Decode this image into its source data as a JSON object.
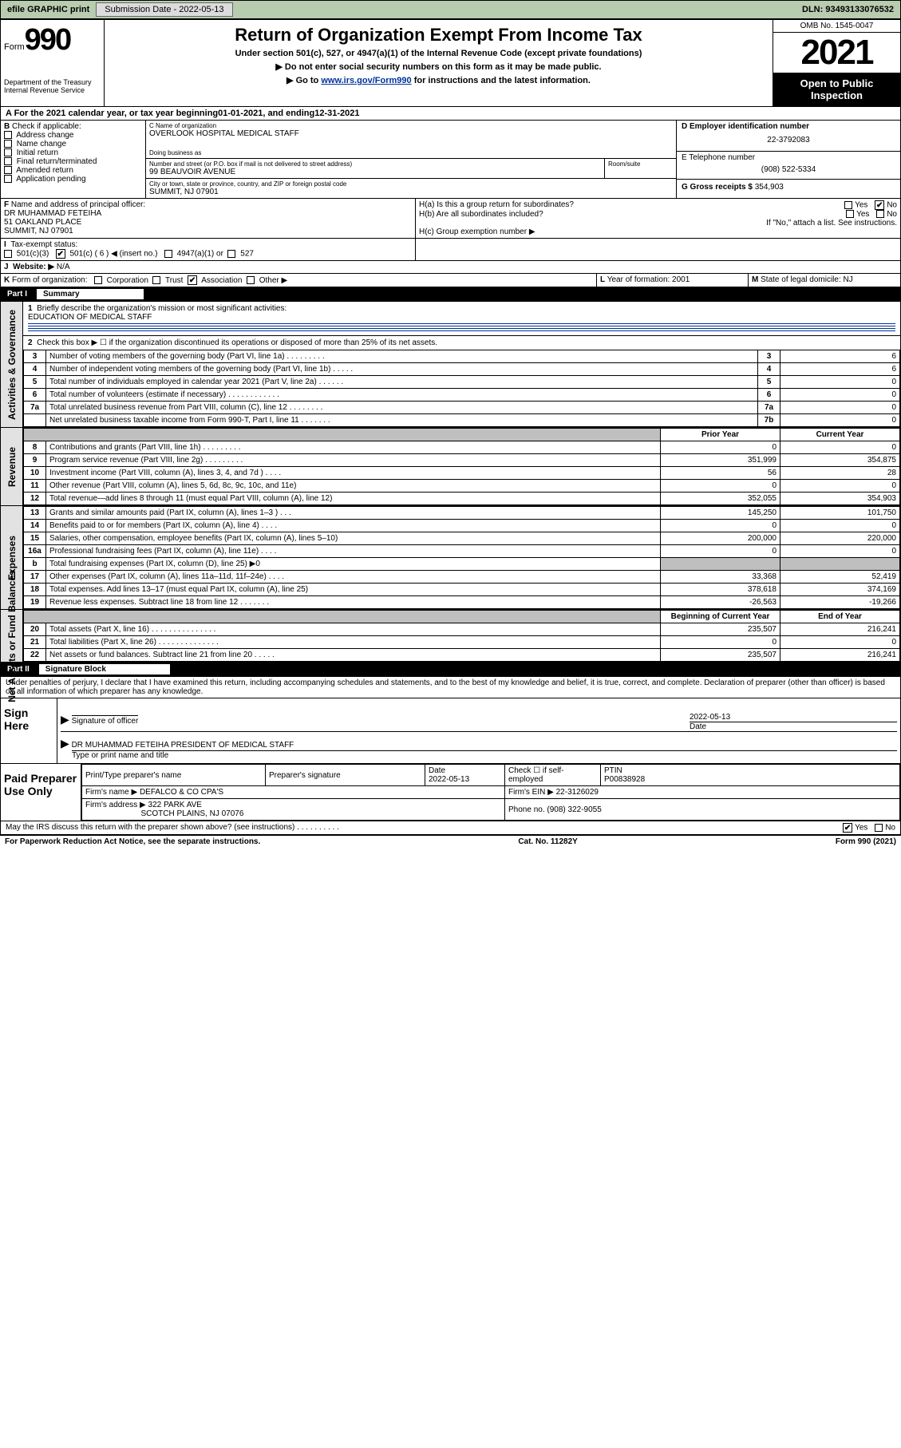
{
  "topbar": {
    "efile": "efile GRAPHIC print",
    "submission_label": "Submission Date - 2022-05-13",
    "dln_label": "DLN: 93493133076532"
  },
  "header": {
    "form_prefix": "Form",
    "form_number": "990",
    "dept": "Department of the Treasury",
    "irs": "Internal Revenue Service",
    "title": "Return of Organization Exempt From Income Tax",
    "sub": "Under section 501(c), 527, or 4947(a)(1) of the Internal Revenue Code (except private foundations)",
    "hint1": "▶ Do not enter social security numbers on this form as it may be made public.",
    "hint2_prefix": "▶ Go to ",
    "hint2_link": "www.irs.gov/Form990",
    "hint2_suffix": " for instructions and the latest information.",
    "omb": "OMB No. 1545-0047",
    "year": "2021",
    "inspect": "Open to Public Inspection"
  },
  "period": {
    "text_prefix": "A For the 2021 calendar year, or tax year beginning ",
    "begin": "01-01-2021",
    "mid": " , and ending ",
    "end": "12-31-2021"
  },
  "section_b": {
    "label": "B",
    "check_label": "Check if applicable:",
    "opts": [
      "Address change",
      "Name change",
      "Initial return",
      "Final return/terminated",
      "Amended return",
      "Application pending"
    ]
  },
  "section_c": {
    "label": "C Name of organization",
    "org": "OVERLOOK HOSPITAL MEDICAL STAFF",
    "dba_label": "Doing business as",
    "dba": "",
    "addr_label": "Number and street (or P.O. box if mail is not delivered to street address)",
    "room_label": "Room/suite",
    "addr": "99 BEAUVOIR AVENUE",
    "city_label": "City or town, state or province, country, and ZIP or foreign postal code",
    "city": "SUMMIT, NJ  07901"
  },
  "section_d": {
    "label": "D Employer identification number",
    "ein": "22-3792083"
  },
  "section_e": {
    "label": "E Telephone number",
    "phone": "(908) 522-5334"
  },
  "section_f": {
    "label": "F",
    "text": "Name and address of principal officer:",
    "name": "DR MUHAMMAD FETEIHA",
    "addr1": "51 OAKLAND PLACE",
    "addr2": "SUMMIT, NJ  07901"
  },
  "section_g": {
    "label": "G Gross receipts $",
    "val": "354,903"
  },
  "section_h": {
    "a": "H(a)  Is this a group return for subordinates?",
    "b": "H(b)  Are all subordinates included?",
    "note": "If \"No,\" attach a list. See instructions.",
    "c": "H(c)  Group exemption number ▶",
    "yes": "Yes",
    "no": "No"
  },
  "section_i": {
    "label": "I",
    "tax": "Tax-exempt status:",
    "o1": "501(c)(3)",
    "o2": "501(c) ( 6 ) ◀ (insert no.)",
    "o3": "4947(a)(1) or",
    "o4": "527"
  },
  "section_j": {
    "label": "J",
    "web": "Website: ▶",
    "val": "N/A"
  },
  "section_k": {
    "label": "K",
    "text": "Form of organization:",
    "opts": [
      "Corporation",
      "Trust",
      "Association",
      "Other ▶"
    ]
  },
  "section_l": {
    "label": "L",
    "text": "Year of formation: 2001"
  },
  "section_m": {
    "label": "M",
    "text": "State of legal domicile: NJ"
  },
  "part1": {
    "hdr": "Part I",
    "ttl": "Summary",
    "q1": "Briefly describe the organization's mission or most significant activities:",
    "q1v": "EDUCATION OF MEDICAL STAFF",
    "q2": "Check this box ▶ ☐  if the organization discontinued its operations or disposed of more than 25% of its net assets.",
    "rows_top": [
      {
        "n": "3",
        "d": "Number of voting members of the governing body (Part VI, line 1a)  .    .    .    .    .    .    .    .    .",
        "rn": "3",
        "v": "6"
      },
      {
        "n": "4",
        "d": "Number of independent voting members of the governing body (Part VI, line 1b)  .    .    .    .    .",
        "rn": "4",
        "v": "6"
      },
      {
        "n": "5",
        "d": "Total number of individuals employed in calendar year 2021 (Part V, line 2a)  .    .    .    .    .    .",
        "rn": "5",
        "v": "0"
      },
      {
        "n": "6",
        "d": "Total number of volunteers (estimate if necessary)  .    .    .    .    .    .    .    .    .    .    .    .",
        "rn": "6",
        "v": "0"
      },
      {
        "n": "7a",
        "d": "Total unrelated business revenue from Part VIII, column (C), line 12  .    .    .    .    .    .    .    .",
        "rn": "7a",
        "v": "0"
      },
      {
        "n": "",
        "d": "Net unrelated business taxable income from Form 990-T, Part I, line 11  .    .    .    .    .    .    .",
        "rn": "7b",
        "v": "0"
      }
    ],
    "col_prior": "Prior Year",
    "col_curr": "Current Year",
    "revenue": [
      {
        "n": "8",
        "d": "Contributions and grants (Part VIII, line 1h)  .    .    .    .    .    .    .    .    .",
        "p": "0",
        "c": "0"
      },
      {
        "n": "9",
        "d": "Program service revenue (Part VIII, line 2g)  .    .    .    .    .    .    .    .    .",
        "p": "351,999",
        "c": "354,875"
      },
      {
        "n": "10",
        "d": "Investment income (Part VIII, column (A), lines 3, 4, and 7d )  .    .    .    .",
        "p": "56",
        "c": "28"
      },
      {
        "n": "11",
        "d": "Other revenue (Part VIII, column (A), lines 5, 6d, 8c, 9c, 10c, and 11e)",
        "p": "0",
        "c": "0"
      },
      {
        "n": "12",
        "d": "Total revenue—add lines 8 through 11 (must equal Part VIII, column (A), line 12)",
        "p": "352,055",
        "c": "354,903"
      }
    ],
    "expenses": [
      {
        "n": "13",
        "d": "Grants and similar amounts paid (Part IX, column (A), lines 1–3 )  .    .    .",
        "p": "145,250",
        "c": "101,750"
      },
      {
        "n": "14",
        "d": "Benefits paid to or for members (Part IX, column (A), line 4)  .    .    .    .",
        "p": "0",
        "c": "0"
      },
      {
        "n": "15",
        "d": "Salaries, other compensation, employee benefits (Part IX, column (A), lines 5–10)",
        "p": "200,000",
        "c": "220,000"
      },
      {
        "n": "16a",
        "d": "Professional fundraising fees (Part IX, column (A), line 11e)  .    .    .    .",
        "p": "0",
        "c": "0"
      },
      {
        "n": "b",
        "d": "Total fundraising expenses (Part IX, column (D), line 25) ▶0",
        "p": "",
        "c": "",
        "grey": true
      },
      {
        "n": "17",
        "d": "Other expenses (Part IX, column (A), lines 11a–11d, 11f–24e)  .    .    .    .",
        "p": "33,368",
        "c": "52,419"
      },
      {
        "n": "18",
        "d": "Total expenses. Add lines 13–17 (must equal Part IX, column (A), line 25)",
        "p": "378,618",
        "c": "374,169"
      },
      {
        "n": "19",
        "d": "Revenue less expenses. Subtract line 18 from line 12  .    .    .    .    .    .    .",
        "p": "-26,563",
        "c": "-19,266"
      }
    ],
    "col_begin": "Beginning of Current Year",
    "col_end": "End of Year",
    "netassets": [
      {
        "n": "20",
        "d": "Total assets (Part X, line 16)  .    .    .    .    .    .    .    .    .    .    .    .    .    .    .",
        "p": "235,507",
        "c": "216,241"
      },
      {
        "n": "21",
        "d": "Total liabilities (Part X, line 26)  .    .    .    .    .    .    .    .    .    .    .    .    .    .",
        "p": "0",
        "c": "0"
      },
      {
        "n": "22",
        "d": "Net assets or fund balances. Subtract line 21 from line 20  .    .    .    .    .",
        "p": "235,507",
        "c": "216,241"
      }
    ],
    "vert": {
      "gov": "Activities & Governance",
      "rev": "Revenue",
      "exp": "Expenses",
      "net": "Net Assets or Fund Balances"
    }
  },
  "part2": {
    "hdr": "Part II",
    "ttl": "Signature Block",
    "decl": "Under penalties of perjury, I declare that I have examined this return, including accompanying schedules and statements, and to the best of my knowledge and belief, it is true, correct, and complete. Declaration of preparer (other than officer) is based on all information of which preparer has any knowledge.",
    "sign_here": "Sign Here",
    "sig_officer": "Signature of officer",
    "date_label": "Date",
    "date_val": "2022-05-13",
    "officer_name": "DR MUHAMMAD FETEIHA  PRESIDENT OF MEDICAL STAFF",
    "type_name": "Type or print name and title",
    "paid": "Paid Preparer Use Only",
    "prep_name_label": "Print/Type preparer's name",
    "prep_sig_label": "Preparer's signature",
    "prep_date_label": "Date",
    "prep_date": "2022-05-13",
    "self_emp": "Check ☐ if self-employed",
    "ptin_label": "PTIN",
    "ptin": "P00838928",
    "firm_name_label": "Firm's name      ▶",
    "firm_name": "DEFALCO & CO CPA'S",
    "firm_ein_label": "Firm's EIN ▶",
    "firm_ein": "22-3126029",
    "firm_addr_label": "Firm's address ▶",
    "firm_addr1": "322 PARK AVE",
    "firm_addr2": "SCOTCH PLAINS, NJ  07076",
    "phone_label": "Phone no.",
    "phone": "(908) 322-9055",
    "discuss": "May the IRS discuss this return with the preparer shown above? (see instructions)  .    .    .    .    .    .    .    .    .    .",
    "yes": "Yes",
    "no": "No"
  },
  "footer": {
    "pra": "For Paperwork Reduction Act Notice, see the separate instructions.",
    "cat": "Cat. No. 11282Y",
    "form": "Form 990 (2021)"
  }
}
